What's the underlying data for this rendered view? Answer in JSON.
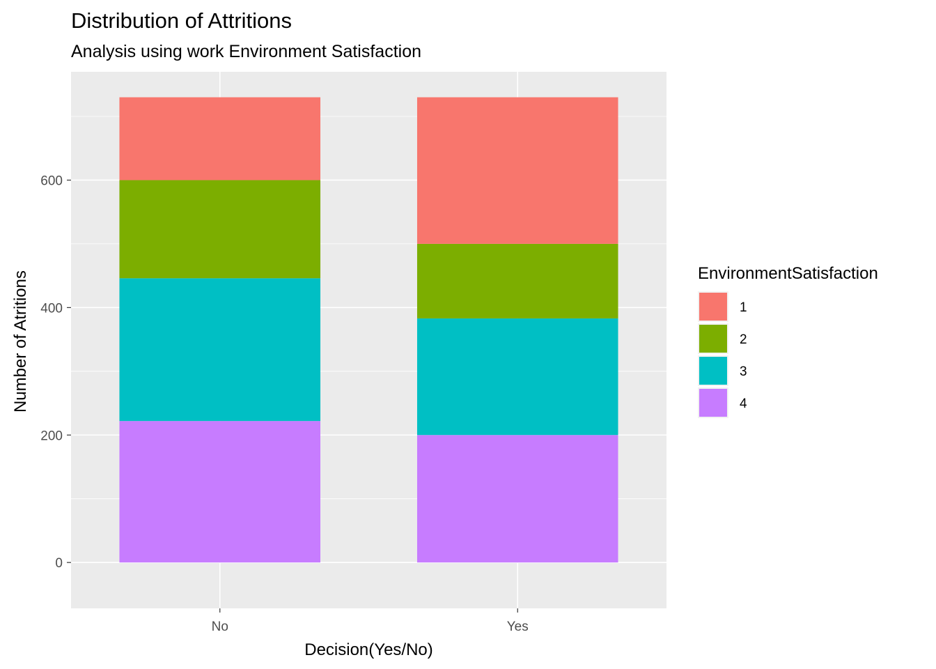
{
  "chart_data": {
    "type": "bar",
    "stacked": true,
    "title": "Distribution of Attritions",
    "subtitle": "Analysis using work Environment Satisfaction",
    "xlabel": "Decision(Yes/No)",
    "ylabel": "Number of Atritions",
    "categories": [
      "No",
      "Yes"
    ],
    "ylim": [
      -72,
      770
    ],
    "yticks": [
      0,
      200,
      400,
      600
    ],
    "grid": true,
    "legend": {
      "title": "EnvironmentSatisfaction",
      "position": "right"
    },
    "series": [
      {
        "name": "4",
        "color": "#C77CFF",
        "values": [
          222,
          200
        ]
      },
      {
        "name": "3",
        "color": "#00BFC4",
        "values": [
          224,
          183
        ]
      },
      {
        "name": "2",
        "color": "#7CAE00",
        "values": [
          154,
          117
        ]
      },
      {
        "name": "1",
        "color": "#F8766D",
        "values": [
          130,
          230
        ]
      }
    ],
    "legend_order": [
      "1",
      "2",
      "3",
      "4"
    ]
  }
}
